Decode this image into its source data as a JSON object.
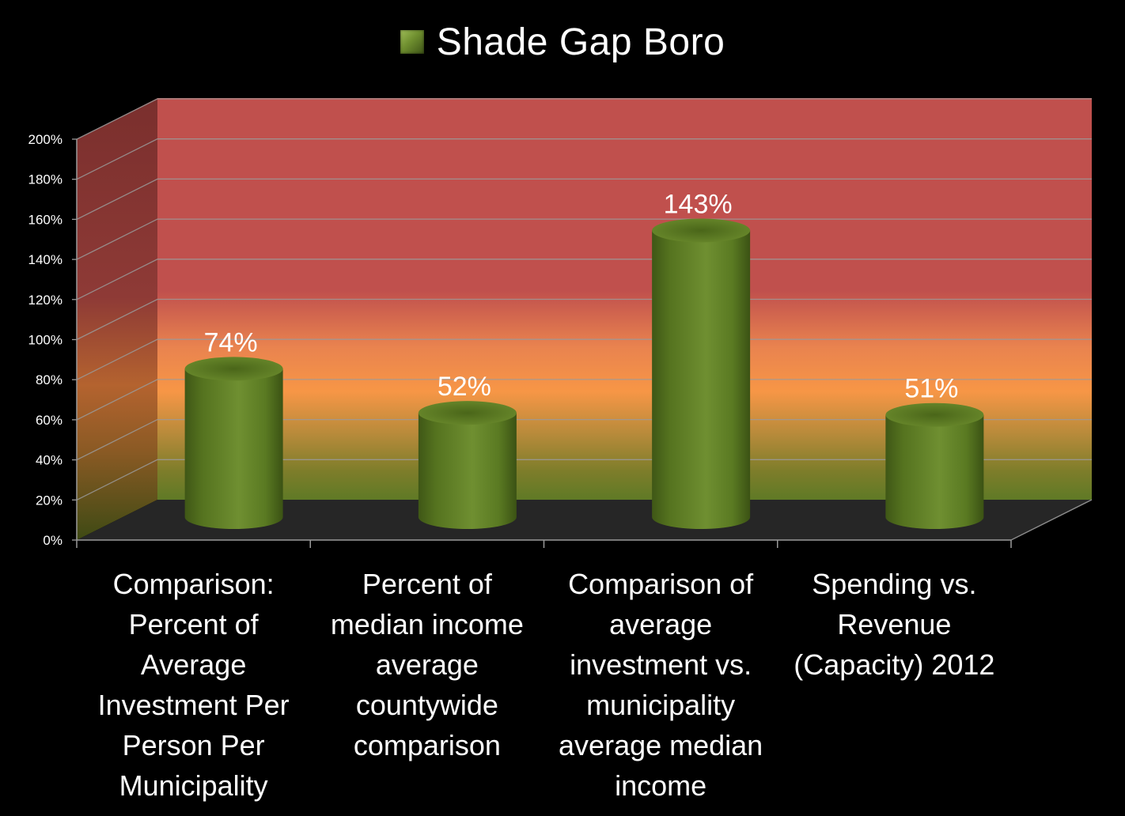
{
  "chart_data": {
    "type": "bar",
    "title": "",
    "categories": [
      "Comparison: Percent of Average Investment Per Person Per Municipality",
      "Percent of median income average countywide comparison",
      "Comparison of average investment vs. municipality average median income",
      "Spending vs. Revenue (Capacity) 2012"
    ],
    "series": [
      {
        "name": "Shade Gap Boro",
        "values": [
          74,
          52,
          143,
          51
        ],
        "color": "#6b8a2d"
      }
    ],
    "data_labels": [
      "74%",
      "52%",
      "143%",
      "51%"
    ],
    "ylim": [
      0,
      200
    ],
    "ytick_values": [
      0,
      20,
      40,
      60,
      80,
      100,
      120,
      140,
      160,
      180,
      200
    ],
    "ytick_labels": [
      "0%",
      "20%",
      "40%",
      "60%",
      "80%",
      "100%",
      "120%",
      "140%",
      "160%",
      "180%",
      "200%"
    ],
    "xlabel": "",
    "ylabel": "",
    "grid": true,
    "legend_position": "top",
    "background_colors": {
      "upper": "#c0504d",
      "middle": "#f79646",
      "lower": "#6b7d2a"
    }
  }
}
